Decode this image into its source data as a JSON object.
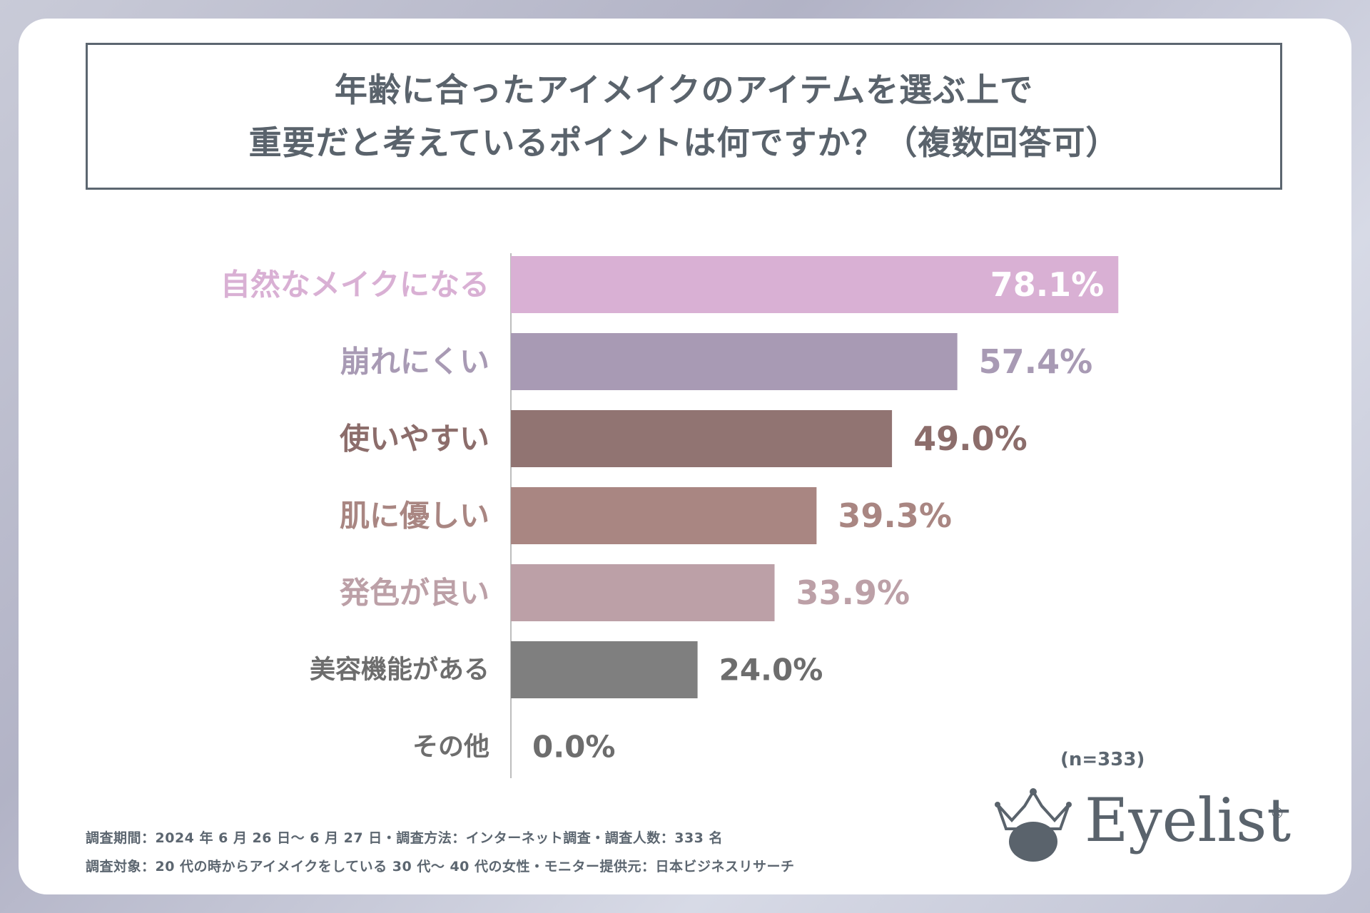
{
  "title": {
    "line1": "年齢に合ったアイメイクのアイテムを選ぶ上で",
    "line2": "重要だと考えているポイントは何ですか？（複数回答可）"
  },
  "chart_data": {
    "type": "bar",
    "orientation": "horizontal",
    "categories": [
      "自然なメイクになる",
      "崩れにくい",
      "使いやすい",
      "肌に優しい",
      "発色が良い",
      "美容機能がある",
      "その他"
    ],
    "values": [
      78.1,
      57.4,
      49.0,
      39.3,
      33.9,
      24.0,
      0.0
    ],
    "value_labels": [
      "78.1%",
      "57.4%",
      "49.0%",
      "39.3%",
      "33.9%",
      "24.0%",
      "0.0%"
    ],
    "colors": [
      "#d9b0d4",
      "#a89ab4",
      "#917472",
      "#a98682",
      "#bca0a7",
      "#7f7f7f",
      "#7f7f7f"
    ],
    "label_colors": [
      "#d9b0d4",
      "#a89ab4",
      "#8c6d6b",
      "#a98682",
      "#bca0a7",
      "#6d6d6d",
      "#6d6d6d"
    ],
    "value_label_colors": [
      "#ffffff",
      "#a89ab4",
      "#8c6d6b",
      "#a98682",
      "#bca0a7",
      "#6d6d6d",
      "#6d6d6d"
    ],
    "value_label_inside": [
      true,
      false,
      false,
      false,
      false,
      false,
      false
    ],
    "xlim": [
      0,
      100
    ]
  },
  "sample": "(n=333)",
  "footnotes": {
    "line1": "調査期間：2024 年 6 月 26 日～ 6 月 27 日・調査方法：インターネット調査・調査人数：333 名",
    "line2": "調査対象：20 代の時からアイメイクをしている 30 代～ 40 代の女性・モニター提供元：日本ビジネスリサーチ"
  },
  "logo": {
    "text": "Eyelist",
    "reg": "®",
    "icon": "crown-eye-icon"
  }
}
